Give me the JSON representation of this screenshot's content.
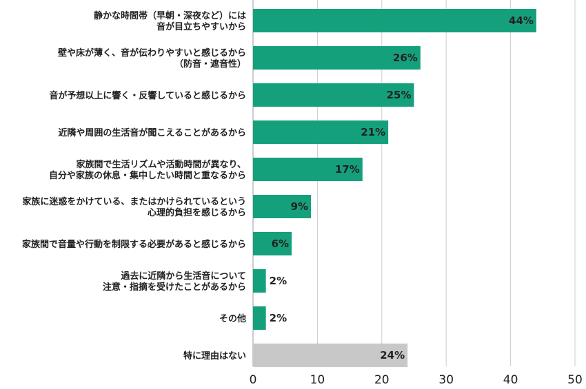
{
  "chart_data": {
    "type": "bar",
    "orientation": "horizontal",
    "categories": [
      [
        "静かな時間帯（早朝・深夜など）には",
        "音が目立ちやすいから"
      ],
      [
        "壁や床が薄く、音が伝わりやすいと感じるから",
        "（防音・遮音性）"
      ],
      [
        "音が予想以上に響く・反響していると感じるから"
      ],
      [
        "近隣や周囲の生活音が聞こえることがあるから"
      ],
      [
        "家族間で生活リズムや活動時間が異なり、",
        "自分や家族の休息・集中したい時間と重なるから"
      ],
      [
        "家族に迷惑をかけている、またはかけられているという",
        "心理的負担を感じるから"
      ],
      [
        "家族間で音量や行動を制限する必要があると感じるから"
      ],
      [
        "過去に近隣から生活音について",
        "注意・指摘を受けたことがあるから"
      ],
      [
        "その他"
      ],
      [
        "特に理由はない"
      ]
    ],
    "values": [
      44,
      26,
      25,
      21,
      17,
      9,
      6,
      2,
      2,
      24
    ],
    "value_labels": [
      "44%",
      "26%",
      "25%",
      "21%",
      "17%",
      "9%",
      "6%",
      "2%",
      "2%",
      "24%"
    ],
    "bar_colors": [
      "#15a07c",
      "#15a07c",
      "#15a07c",
      "#15a07c",
      "#15a07c",
      "#15a07c",
      "#15a07c",
      "#15a07c",
      "#15a07c",
      "#c8c8c8"
    ],
    "xlim": [
      0,
      50
    ],
    "xticks": [
      0,
      10,
      20,
      30,
      40,
      50
    ],
    "grid": true,
    "gridline_color": "#cccccc"
  }
}
